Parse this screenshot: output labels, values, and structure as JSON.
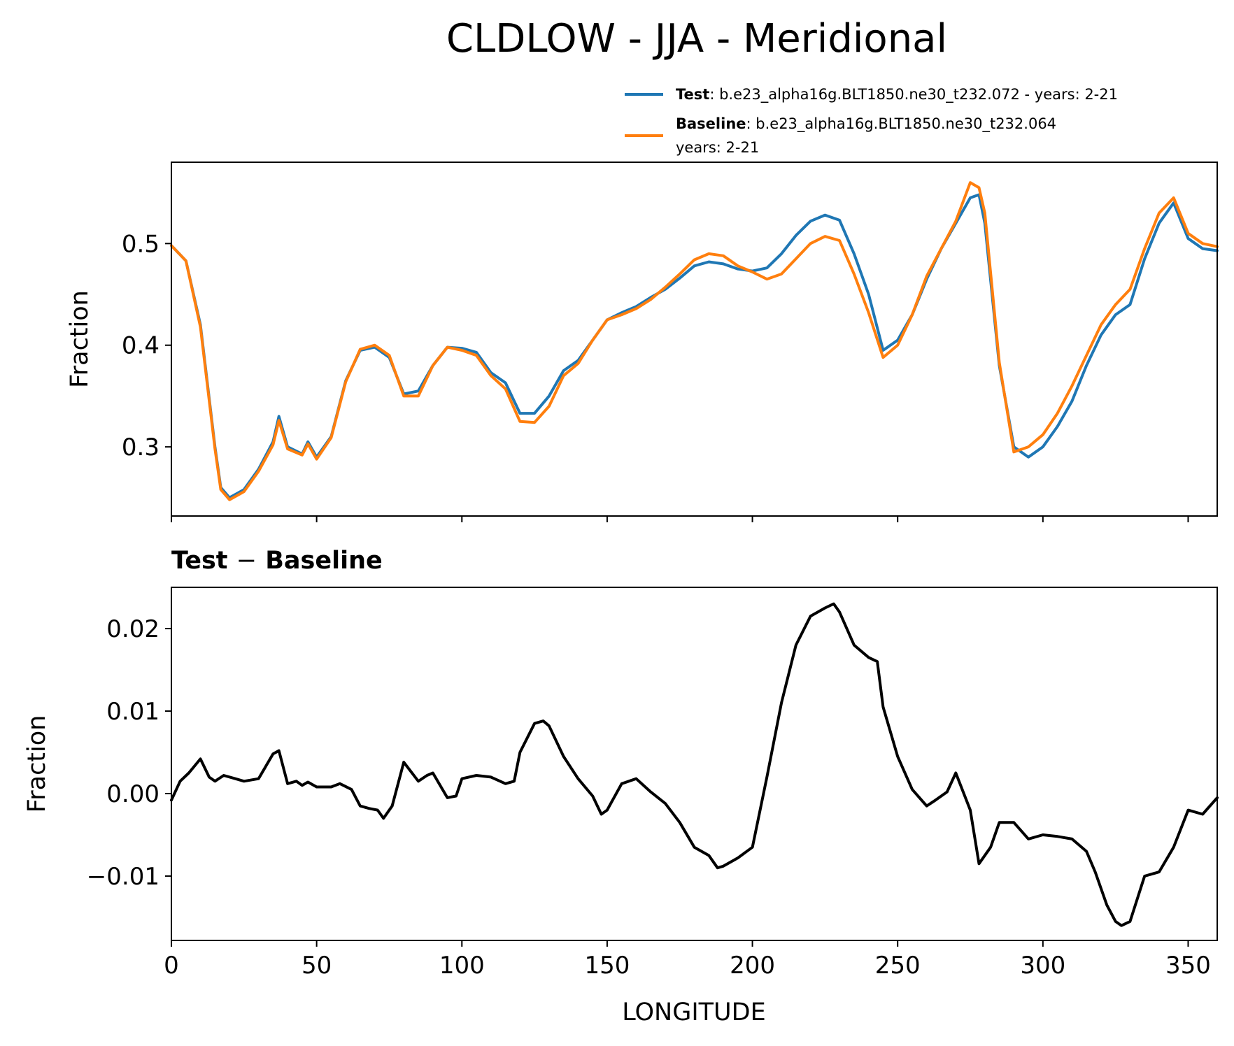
{
  "figure": {
    "title": "CLDLOW - JJA - Meridional"
  },
  "legend": {
    "test_bold": "Test",
    "test_rest": ": b.e23_alpha16g.BLT1850.ne30_t232.072 - years: 2-21",
    "base_bold": "Baseline",
    "base_rest": ": b.e23_alpha16g.BLT1850.ne30_t232.064",
    "base_line2": "years: 2-21"
  },
  "colors": {
    "test": "#1f77b4",
    "baseline": "#ff7f0e",
    "diff": "#000000"
  },
  "chart_data": [
    {
      "type": "line",
      "ylabel": "Fraction",
      "xlim": [
        0,
        360
      ],
      "ylim": [
        0.232,
        0.58
      ],
      "yticks": [
        0.3,
        0.4,
        0.5
      ],
      "ytick_labels": [
        "0.3",
        "0.4",
        "0.5"
      ],
      "xticks": [
        0,
        50,
        100,
        150,
        200,
        250,
        300,
        350
      ],
      "x": [
        0,
        5,
        10,
        15,
        17,
        20,
        25,
        30,
        35,
        37,
        40,
        45,
        47,
        50,
        55,
        60,
        65,
        70,
        75,
        80,
        85,
        90,
        95,
        100,
        105,
        110,
        115,
        120,
        125,
        130,
        135,
        140,
        145,
        150,
        155,
        160,
        165,
        170,
        175,
        180,
        185,
        190,
        195,
        200,
        205,
        210,
        215,
        220,
        225,
        230,
        235,
        240,
        245,
        250,
        255,
        260,
        265,
        270,
        275,
        278,
        280,
        285,
        290,
        295,
        300,
        305,
        310,
        315,
        320,
        325,
        330,
        335,
        340,
        345,
        350,
        355,
        360
      ],
      "series": [
        {
          "name": "Test",
          "values": [
            0.498,
            0.483,
            0.42,
            0.3,
            0.26,
            0.25,
            0.258,
            0.278,
            0.305,
            0.33,
            0.3,
            0.293,
            0.305,
            0.29,
            0.31,
            0.365,
            0.395,
            0.398,
            0.388,
            0.352,
            0.355,
            0.38,
            0.398,
            0.397,
            0.393,
            0.373,
            0.363,
            0.333,
            0.333,
            0.35,
            0.375,
            0.385,
            0.405,
            0.425,
            0.432,
            0.438,
            0.447,
            0.455,
            0.466,
            0.478,
            0.482,
            0.48,
            0.475,
            0.473,
            0.476,
            0.49,
            0.508,
            0.522,
            0.528,
            0.523,
            0.49,
            0.45,
            0.395,
            0.405,
            0.43,
            0.465,
            0.495,
            0.52,
            0.545,
            0.548,
            0.52,
            0.38,
            0.3,
            0.29,
            0.3,
            0.32,
            0.345,
            0.38,
            0.41,
            0.43,
            0.44,
            0.485,
            0.52,
            0.54,
            0.505,
            0.495,
            0.493
          ]
        },
        {
          "name": "Baseline",
          "values": [
            0.498,
            0.483,
            0.418,
            0.298,
            0.258,
            0.248,
            0.256,
            0.276,
            0.302,
            0.326,
            0.298,
            0.292,
            0.303,
            0.288,
            0.309,
            0.364,
            0.396,
            0.4,
            0.39,
            0.35,
            0.35,
            0.38,
            0.398,
            0.395,
            0.39,
            0.37,
            0.357,
            0.325,
            0.324,
            0.34,
            0.37,
            0.382,
            0.405,
            0.425,
            0.43,
            0.436,
            0.445,
            0.457,
            0.47,
            0.484,
            0.49,
            0.488,
            0.478,
            0.472,
            0.465,
            0.47,
            0.485,
            0.5,
            0.507,
            0.503,
            0.47,
            0.432,
            0.388,
            0.4,
            0.43,
            0.468,
            0.495,
            0.522,
            0.56,
            0.555,
            0.53,
            0.383,
            0.295,
            0.3,
            0.312,
            0.333,
            0.36,
            0.39,
            0.42,
            0.44,
            0.455,
            0.495,
            0.53,
            0.545,
            0.51,
            0.5,
            0.497
          ]
        }
      ]
    },
    {
      "type": "line",
      "title": "Test - Baseline",
      "title_bold_left": "Test",
      "title_minus": "−",
      "title_bold_right": "Baseline",
      "ylabel": "Fraction",
      "xlabel": "LONGITUDE",
      "xlim": [
        0,
        360
      ],
      "ylim": [
        -0.0178,
        0.025
      ],
      "yticks": [
        -0.01,
        0.0,
        0.01,
        0.02
      ],
      "ytick_labels": [
        "−0.01",
        "0.00",
        "0.01",
        "0.02"
      ],
      "xticks": [
        0,
        50,
        100,
        150,
        200,
        250,
        300,
        350
      ],
      "xtick_labels": [
        "0",
        "50",
        "100",
        "150",
        "200",
        "250",
        "300",
        "350"
      ],
      "x": [
        0,
        3,
        6,
        10,
        13,
        15,
        18,
        22,
        25,
        30,
        35,
        37,
        40,
        43,
        45,
        47,
        50,
        55,
        58,
        62,
        65,
        68,
        71,
        73,
        76,
        80,
        85,
        88,
        90,
        95,
        98,
        100,
        105,
        110,
        115,
        118,
        120,
        125,
        128,
        130,
        135,
        140,
        145,
        148,
        150,
        155,
        160,
        165,
        170,
        175,
        180,
        185,
        188,
        190,
        195,
        200,
        205,
        210,
        215,
        220,
        225,
        228,
        230,
        235,
        240,
        243,
        245,
        250,
        255,
        260,
        263,
        267,
        270,
        275,
        278,
        282,
        285,
        290,
        295,
        300,
        305,
        310,
        315,
        318,
        322,
        325,
        327,
        330,
        335,
        340,
        345,
        350,
        355,
        360
      ],
      "series": [
        {
          "name": "Test - Baseline",
          "values": [
            -0.0008,
            0.0015,
            0.0025,
            0.0042,
            0.002,
            0.0015,
            0.0022,
            0.0018,
            0.0015,
            0.0018,
            0.0048,
            0.0052,
            0.0012,
            0.0015,
            0.001,
            0.0014,
            0.0008,
            0.0008,
            0.0012,
            0.0005,
            -0.0015,
            -0.0018,
            -0.002,
            -0.003,
            -0.0015,
            0.0038,
            0.0015,
            0.0022,
            0.0025,
            -0.0005,
            -0.0003,
            0.0018,
            0.0022,
            0.002,
            0.0012,
            0.0015,
            0.005,
            0.0085,
            0.0088,
            0.0082,
            0.0045,
            0.0018,
            -0.0003,
            -0.0025,
            -0.002,
            0.0012,
            0.0018,
            0.0002,
            -0.0012,
            -0.0035,
            -0.0065,
            -0.0075,
            -0.009,
            -0.0088,
            -0.0078,
            -0.0065,
            0.002,
            0.011,
            0.018,
            0.0215,
            0.0225,
            0.023,
            0.022,
            0.018,
            0.0165,
            0.016,
            0.0105,
            0.0045,
            0.0005,
            -0.0015,
            -0.0008,
            0.0002,
            0.0025,
            -0.002,
            -0.0085,
            -0.0065,
            -0.0035,
            -0.0035,
            -0.0055,
            -0.005,
            -0.0052,
            -0.0055,
            -0.007,
            -0.0095,
            -0.0135,
            -0.0155,
            -0.016,
            -0.0155,
            -0.01,
            -0.0095,
            -0.0065,
            -0.002,
            -0.0025,
            -0.0005
          ]
        }
      ]
    }
  ]
}
